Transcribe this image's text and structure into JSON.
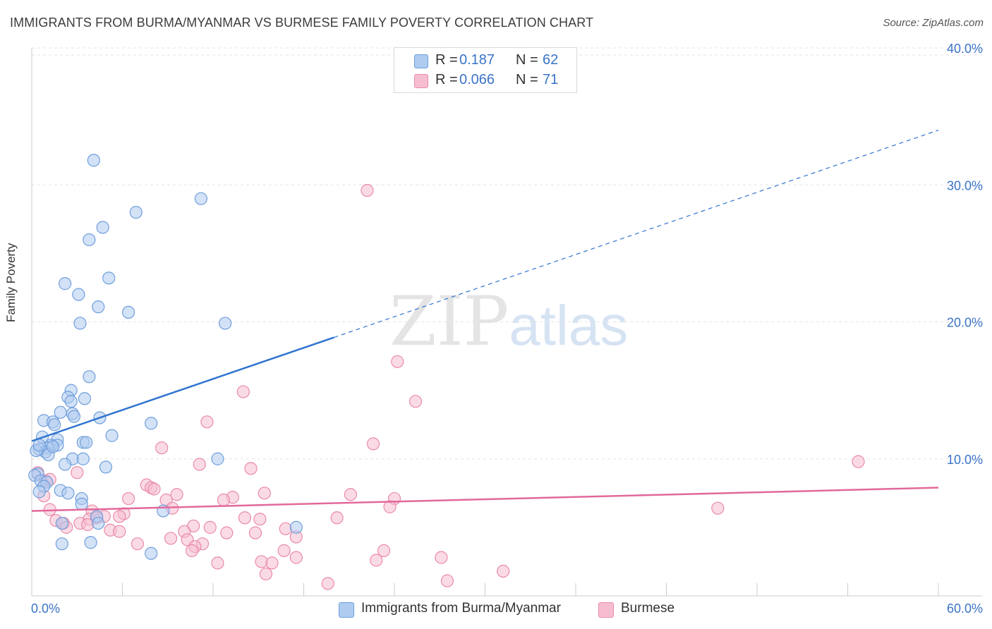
{
  "title": "IMMIGRANTS FROM BURMA/MYANMAR VS BURMESE FAMILY POVERTY CORRELATION CHART",
  "source": "Source: ZipAtlas.com",
  "watermark": {
    "zip": "ZIP",
    "atlas": "atlas"
  },
  "colors": {
    "blue_fill": "#aecbf0",
    "blue_stroke": "#6f9fdc",
    "blue_line": "#2f74cf",
    "pink_fill": "#f6bdd0",
    "pink_stroke": "#e98aa9",
    "pink_line": "#e2699a",
    "tick_text": "#3a73c7",
    "grid": "#e3e3e3"
  },
  "legend": {
    "rows": [
      {
        "r_label": "R =",
        "r_value": "0.187",
        "n_label": "N =",
        "n_value": "62",
        "color": "#aecbf0",
        "border": "#6f9fdc"
      },
      {
        "r_label": "R =",
        "r_value": "0.066",
        "n_label": "N =",
        "n_value": "71",
        "color": "#f6bdd0",
        "border": "#e98aa9"
      }
    ]
  },
  "bottom_legend": [
    {
      "label": "Immigrants from Burma/Myanmar",
      "color": "#aecbf0",
      "border": "#6f9fdc"
    },
    {
      "label": "Burmese",
      "color": "#f6bdd0",
      "border": "#e98aa9"
    }
  ],
  "chart_data": {
    "type": "scatter",
    "title": "IMMIGRANTS FROM BURMA/MYANMAR VS BURMESE FAMILY POVERTY CORRELATION CHART",
    "xlabel": "",
    "ylabel": "Family Poverty",
    "xlim": [
      0,
      60
    ],
    "ylim": [
      0,
      40
    ],
    "x_tick_labels": [
      {
        "value": 0,
        "label": "0.0%"
      },
      {
        "value": 60,
        "label": "60.0%"
      }
    ],
    "y_tick_labels": [
      {
        "value": 10,
        "label": "10.0%"
      },
      {
        "value": 20,
        "label": "20.0%"
      },
      {
        "value": 30,
        "label": "30.0%"
      },
      {
        "value": 40,
        "label": "40.0%"
      }
    ],
    "series": [
      {
        "name": "Immigrants from Burma/Myanmar",
        "R": 0.187,
        "N": 62,
        "trend": {
          "x0": 0,
          "y0": 11.3,
          "x1": 60,
          "y1": 34.0,
          "solid_until_x": 20
        },
        "points": [
          [
            4.1,
            31.8
          ],
          [
            11.2,
            29.0
          ],
          [
            6.9,
            28.0
          ],
          [
            4.7,
            26.9
          ],
          [
            3.8,
            26.0
          ],
          [
            5.1,
            23.2
          ],
          [
            2.2,
            22.8
          ],
          [
            3.1,
            22.0
          ],
          [
            4.4,
            21.1
          ],
          [
            6.4,
            20.7
          ],
          [
            3.2,
            19.9
          ],
          [
            12.8,
            19.9
          ],
          [
            3.8,
            16.0
          ],
          [
            2.6,
            15.0
          ],
          [
            2.4,
            14.5
          ],
          [
            3.5,
            14.4
          ],
          [
            2.6,
            14.2
          ],
          [
            1.9,
            13.4
          ],
          [
            2.7,
            13.3
          ],
          [
            2.8,
            13.1
          ],
          [
            4.5,
            13.0
          ],
          [
            0.8,
            12.8
          ],
          [
            1.4,
            12.7
          ],
          [
            1.5,
            12.5
          ],
          [
            7.9,
            12.6
          ],
          [
            0.7,
            11.6
          ],
          [
            5.3,
            11.7
          ],
          [
            3.4,
            11.2
          ],
          [
            3.6,
            11.2
          ],
          [
            1.7,
            11.4
          ],
          [
            1.3,
            11.0
          ],
          [
            1.7,
            11.0
          ],
          [
            1.1,
            10.8
          ],
          [
            0.5,
            10.7
          ],
          [
            0.9,
            10.5
          ],
          [
            1.1,
            10.3
          ],
          [
            2.7,
            10.0
          ],
          [
            3.4,
            10.0
          ],
          [
            12.3,
            10.0
          ],
          [
            2.2,
            9.6
          ],
          [
            4.9,
            9.4
          ],
          [
            0.4,
            8.9
          ],
          [
            0.2,
            8.8
          ],
          [
            0.6,
            8.4
          ],
          [
            1.0,
            8.3
          ],
          [
            0.8,
            8.0
          ],
          [
            1.9,
            7.7
          ],
          [
            2.4,
            7.5
          ],
          [
            0.5,
            7.6
          ],
          [
            3.3,
            7.1
          ],
          [
            3.3,
            6.7
          ],
          [
            8.7,
            6.2
          ],
          [
            4.3,
            5.8
          ],
          [
            2.0,
            5.3
          ],
          [
            4.4,
            5.3
          ],
          [
            17.5,
            5.0
          ],
          [
            2.0,
            3.8
          ],
          [
            3.9,
            3.9
          ],
          [
            7.9,
            3.1
          ],
          [
            0.3,
            10.6
          ],
          [
            0.5,
            11.0
          ],
          [
            1.4,
            10.9
          ]
        ]
      },
      {
        "name": "Burmese",
        "R": 0.066,
        "N": 71,
        "trend": {
          "x0": 0,
          "y0": 6.2,
          "x1": 60,
          "y1": 7.9
        },
        "points": [
          [
            22.2,
            29.6
          ],
          [
            24.2,
            17.1
          ],
          [
            25.4,
            14.2
          ],
          [
            14.0,
            14.9
          ],
          [
            11.6,
            12.7
          ],
          [
            22.6,
            11.1
          ],
          [
            8.6,
            10.8
          ],
          [
            54.7,
            9.8
          ],
          [
            11.1,
            9.6
          ],
          [
            14.5,
            9.3
          ],
          [
            0.4,
            9.0
          ],
          [
            3.0,
            9.0
          ],
          [
            7.6,
            8.1
          ],
          [
            7.9,
            7.9
          ],
          [
            8.1,
            7.8
          ],
          [
            0.9,
            8.4
          ],
          [
            1.2,
            8.5
          ],
          [
            15.4,
            7.5
          ],
          [
            21.1,
            7.4
          ],
          [
            9.6,
            7.4
          ],
          [
            13.3,
            7.2
          ],
          [
            6.4,
            7.1
          ],
          [
            8.9,
            7.0
          ],
          [
            12.7,
            7.0
          ],
          [
            24.0,
            7.1
          ],
          [
            0.8,
            7.3
          ],
          [
            9.3,
            6.4
          ],
          [
            23.7,
            6.5
          ],
          [
            45.4,
            6.4
          ],
          [
            1.2,
            6.3
          ],
          [
            4.0,
            6.2
          ],
          [
            6.1,
            6.0
          ],
          [
            5.8,
            5.8
          ],
          [
            4.8,
            5.8
          ],
          [
            20.2,
            5.7
          ],
          [
            3.8,
            5.6
          ],
          [
            4.3,
            5.7
          ],
          [
            1.6,
            5.5
          ],
          [
            14.1,
            5.7
          ],
          [
            15.1,
            5.6
          ],
          [
            3.2,
            5.3
          ],
          [
            2.1,
            5.3
          ],
          [
            3.7,
            5.2
          ],
          [
            11.8,
            5.0
          ],
          [
            2.3,
            5.0
          ],
          [
            10.7,
            5.1
          ],
          [
            5.2,
            4.8
          ],
          [
            16.8,
            4.9
          ],
          [
            10.1,
            4.7
          ],
          [
            14.8,
            4.6
          ],
          [
            12.9,
            4.6
          ],
          [
            5.8,
            4.7
          ],
          [
            17.5,
            4.3
          ],
          [
            9.2,
            4.2
          ],
          [
            10.3,
            4.1
          ],
          [
            7.0,
            3.8
          ],
          [
            11.3,
            3.8
          ],
          [
            10.8,
            3.6
          ],
          [
            23.3,
            3.3
          ],
          [
            16.7,
            3.3
          ],
          [
            10.6,
            3.3
          ],
          [
            17.5,
            2.8
          ],
          [
            27.1,
            2.8
          ],
          [
            15.2,
            2.5
          ],
          [
            22.8,
            2.6
          ],
          [
            15.9,
            2.4
          ],
          [
            12.3,
            2.4
          ],
          [
            31.2,
            1.8
          ],
          [
            15.5,
            1.6
          ],
          [
            19.6,
            0.9
          ],
          [
            27.5,
            1.1
          ]
        ]
      }
    ]
  }
}
